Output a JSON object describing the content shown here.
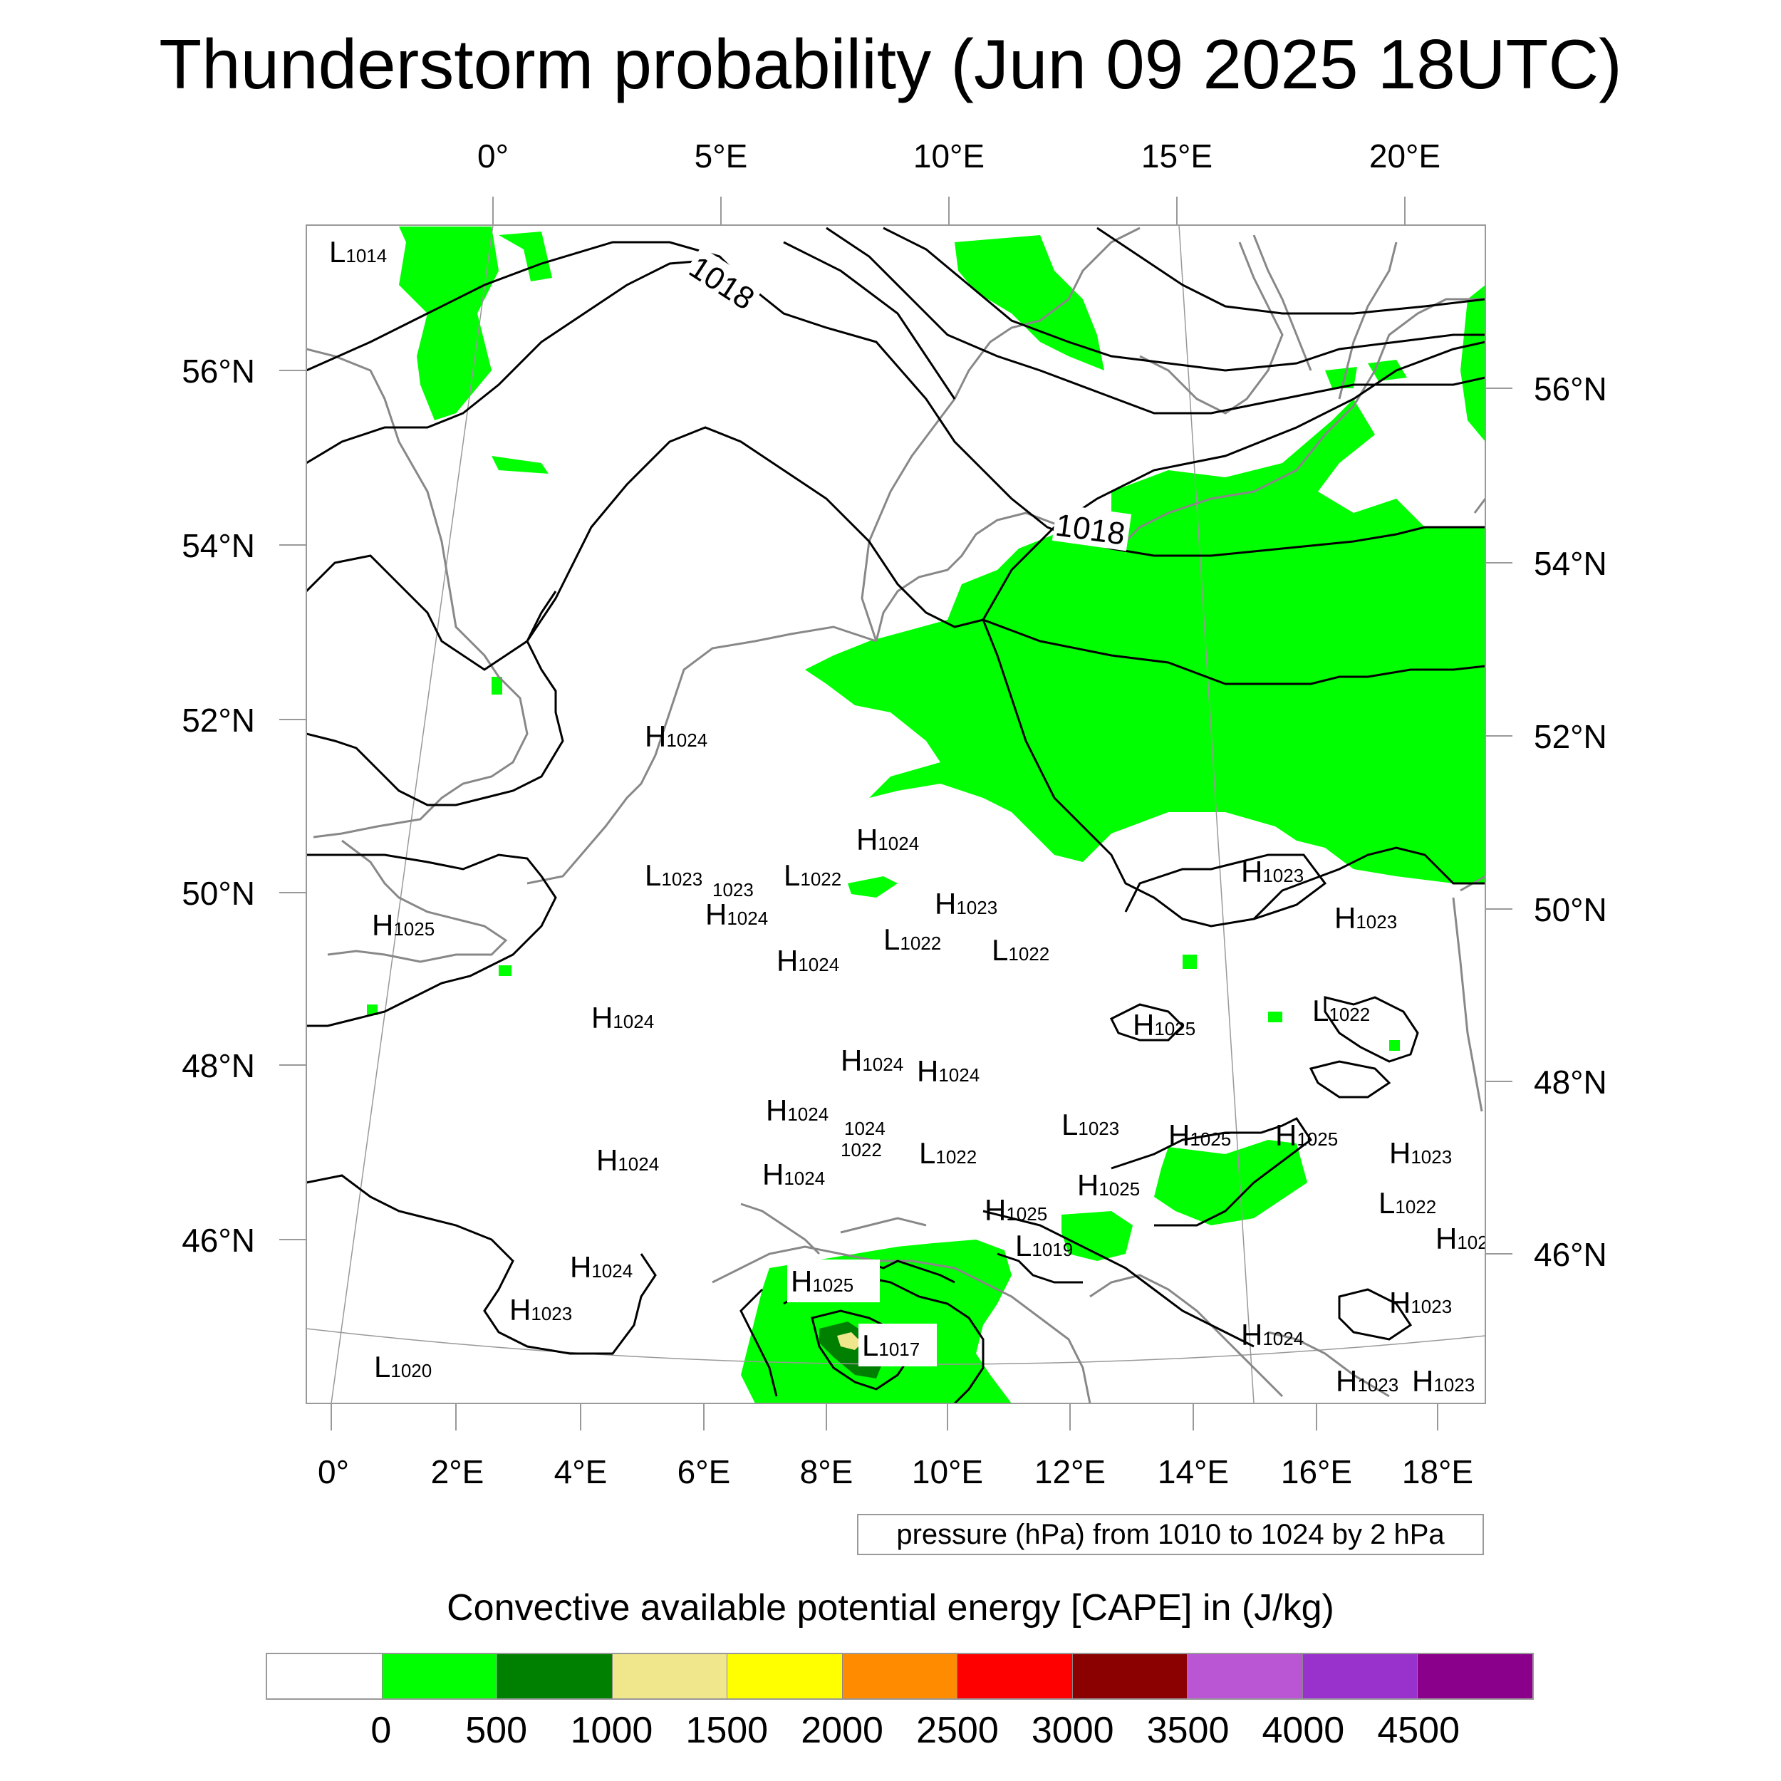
{
  "title": "Thunderstorm probability (Jun 09 2025 18UTC)",
  "top_lon_labels": [
    "0°",
    "5°E",
    "10°E",
    "15°E",
    "20°E"
  ],
  "bottom_lon_labels": [
    "0°",
    "2°E",
    "4°E",
    "6°E",
    "8°E",
    "10°E",
    "12°E",
    "14°E",
    "16°E",
    "18°E"
  ],
  "left_lat_labels": [
    "56°N",
    "54°N",
    "52°N",
    "50°N",
    "48°N",
    "46°N"
  ],
  "right_lat_labels": [
    "56°N",
    "54°N",
    "52°N",
    "50°N",
    "48°N",
    "46°N"
  ],
  "isobar_labels": [
    "1018",
    "1018"
  ],
  "pressure_centers": [
    {
      "letter": "L",
      "value": "1014"
    },
    {
      "letter": "H",
      "value": "1024"
    },
    {
      "letter": "H",
      "value": "1024"
    },
    {
      "letter": "L",
      "value": "1023"
    },
    {
      "letter": "",
      "value": "1023"
    },
    {
      "letter": "L",
      "value": "1022"
    },
    {
      "letter": "H",
      "value": "1024"
    },
    {
      "letter": "H",
      "value": "1023"
    },
    {
      "letter": "H",
      "value": "1023"
    },
    {
      "letter": "H",
      "value": "1025"
    },
    {
      "letter": "L",
      "value": "1022"
    },
    {
      "letter": "L",
      "value": "1022"
    },
    {
      "letter": "H",
      "value": "1024"
    },
    {
      "letter": "H",
      "value": "1023"
    },
    {
      "letter": "H",
      "value": "1024"
    },
    {
      "letter": "H",
      "value": "1025"
    },
    {
      "letter": "L",
      "value": "1022"
    },
    {
      "letter": "H",
      "value": "1024"
    },
    {
      "letter": "H",
      "value": "1024"
    },
    {
      "letter": "H",
      "value": "1024"
    },
    {
      "letter": "",
      "value": "1024"
    },
    {
      "letter": "L",
      "value": "1023"
    },
    {
      "letter": "H",
      "value": "1025"
    },
    {
      "letter": "H",
      "value": "1025"
    },
    {
      "letter": "H",
      "value": "1023"
    },
    {
      "letter": "",
      "value": "1022"
    },
    {
      "letter": "L",
      "value": "1022"
    },
    {
      "letter": "H",
      "value": "1024"
    },
    {
      "letter": "H",
      "value": "1024"
    },
    {
      "letter": "H",
      "value": "1025"
    },
    {
      "letter": "H",
      "value": "1025"
    },
    {
      "letter": "L",
      "value": "1022"
    },
    {
      "letter": "L",
      "value": "1019"
    },
    {
      "letter": "H",
      "value": "102"
    },
    {
      "letter": "H",
      "value": "1024"
    },
    {
      "letter": "H",
      "value": "1025"
    },
    {
      "letter": "H",
      "value": "1023"
    },
    {
      "letter": "H",
      "value": "1023"
    },
    {
      "letter": "L",
      "value": "1017"
    },
    {
      "letter": "H",
      "value": "1024"
    },
    {
      "letter": "L",
      "value": "1020"
    },
    {
      "letter": "H",
      "value": "1023"
    },
    {
      "letter": "H",
      "value": "1023"
    }
  ],
  "pressure_note": "pressure (hPa) from 1010 to 1024 by 2 hPa",
  "colorbar": {
    "title": "Convective available potential energy [CAPE] in (J/kg)",
    "colors": [
      "#ffffff",
      "#00ff00",
      "#008000",
      "#f0e68c",
      "#ffff00",
      "#ff8c00",
      "#ff0000",
      "#8b0000",
      "#ba55d3",
      "#9932cc",
      "#8b008b"
    ],
    "labels": [
      "0",
      "500",
      "1000",
      "1500",
      "2000",
      "2500",
      "3000",
      "3500",
      "4000",
      "4500"
    ]
  }
}
